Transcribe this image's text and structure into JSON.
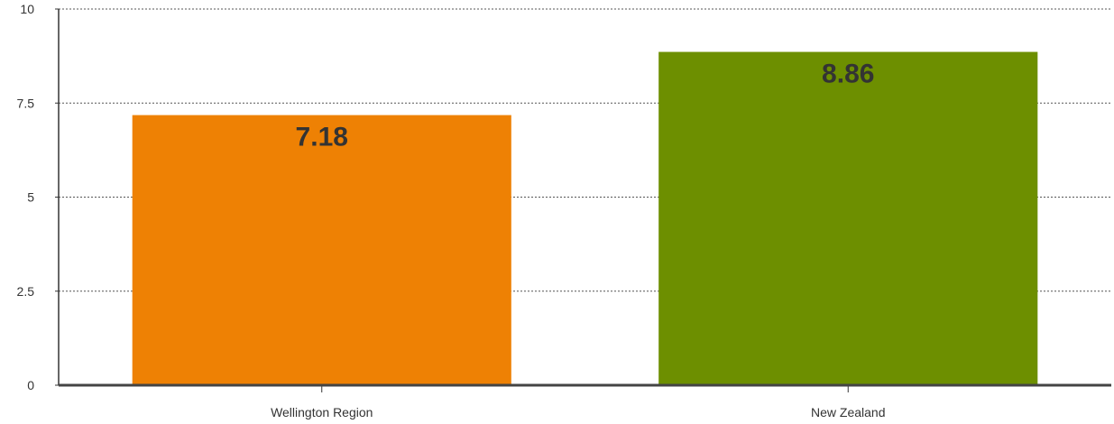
{
  "chart_data": {
    "type": "bar",
    "title": "",
    "xlabel": "",
    "ylabel": "",
    "categories": [
      "Wellington Region",
      "New Zealand"
    ],
    "values": [
      7.18,
      8.86
    ],
    "value_labels": [
      "7.18",
      "8.86"
    ],
    "bar_colors": [
      "#ee8104",
      "#6d8f00"
    ],
    "ylim": [
      0,
      10
    ],
    "yticks": [
      0,
      2.5,
      5,
      7.5,
      10
    ],
    "ytick_labels": [
      "0",
      "2.5",
      "5",
      "7.5",
      "10"
    ],
    "grid": true,
    "legend": "none"
  }
}
